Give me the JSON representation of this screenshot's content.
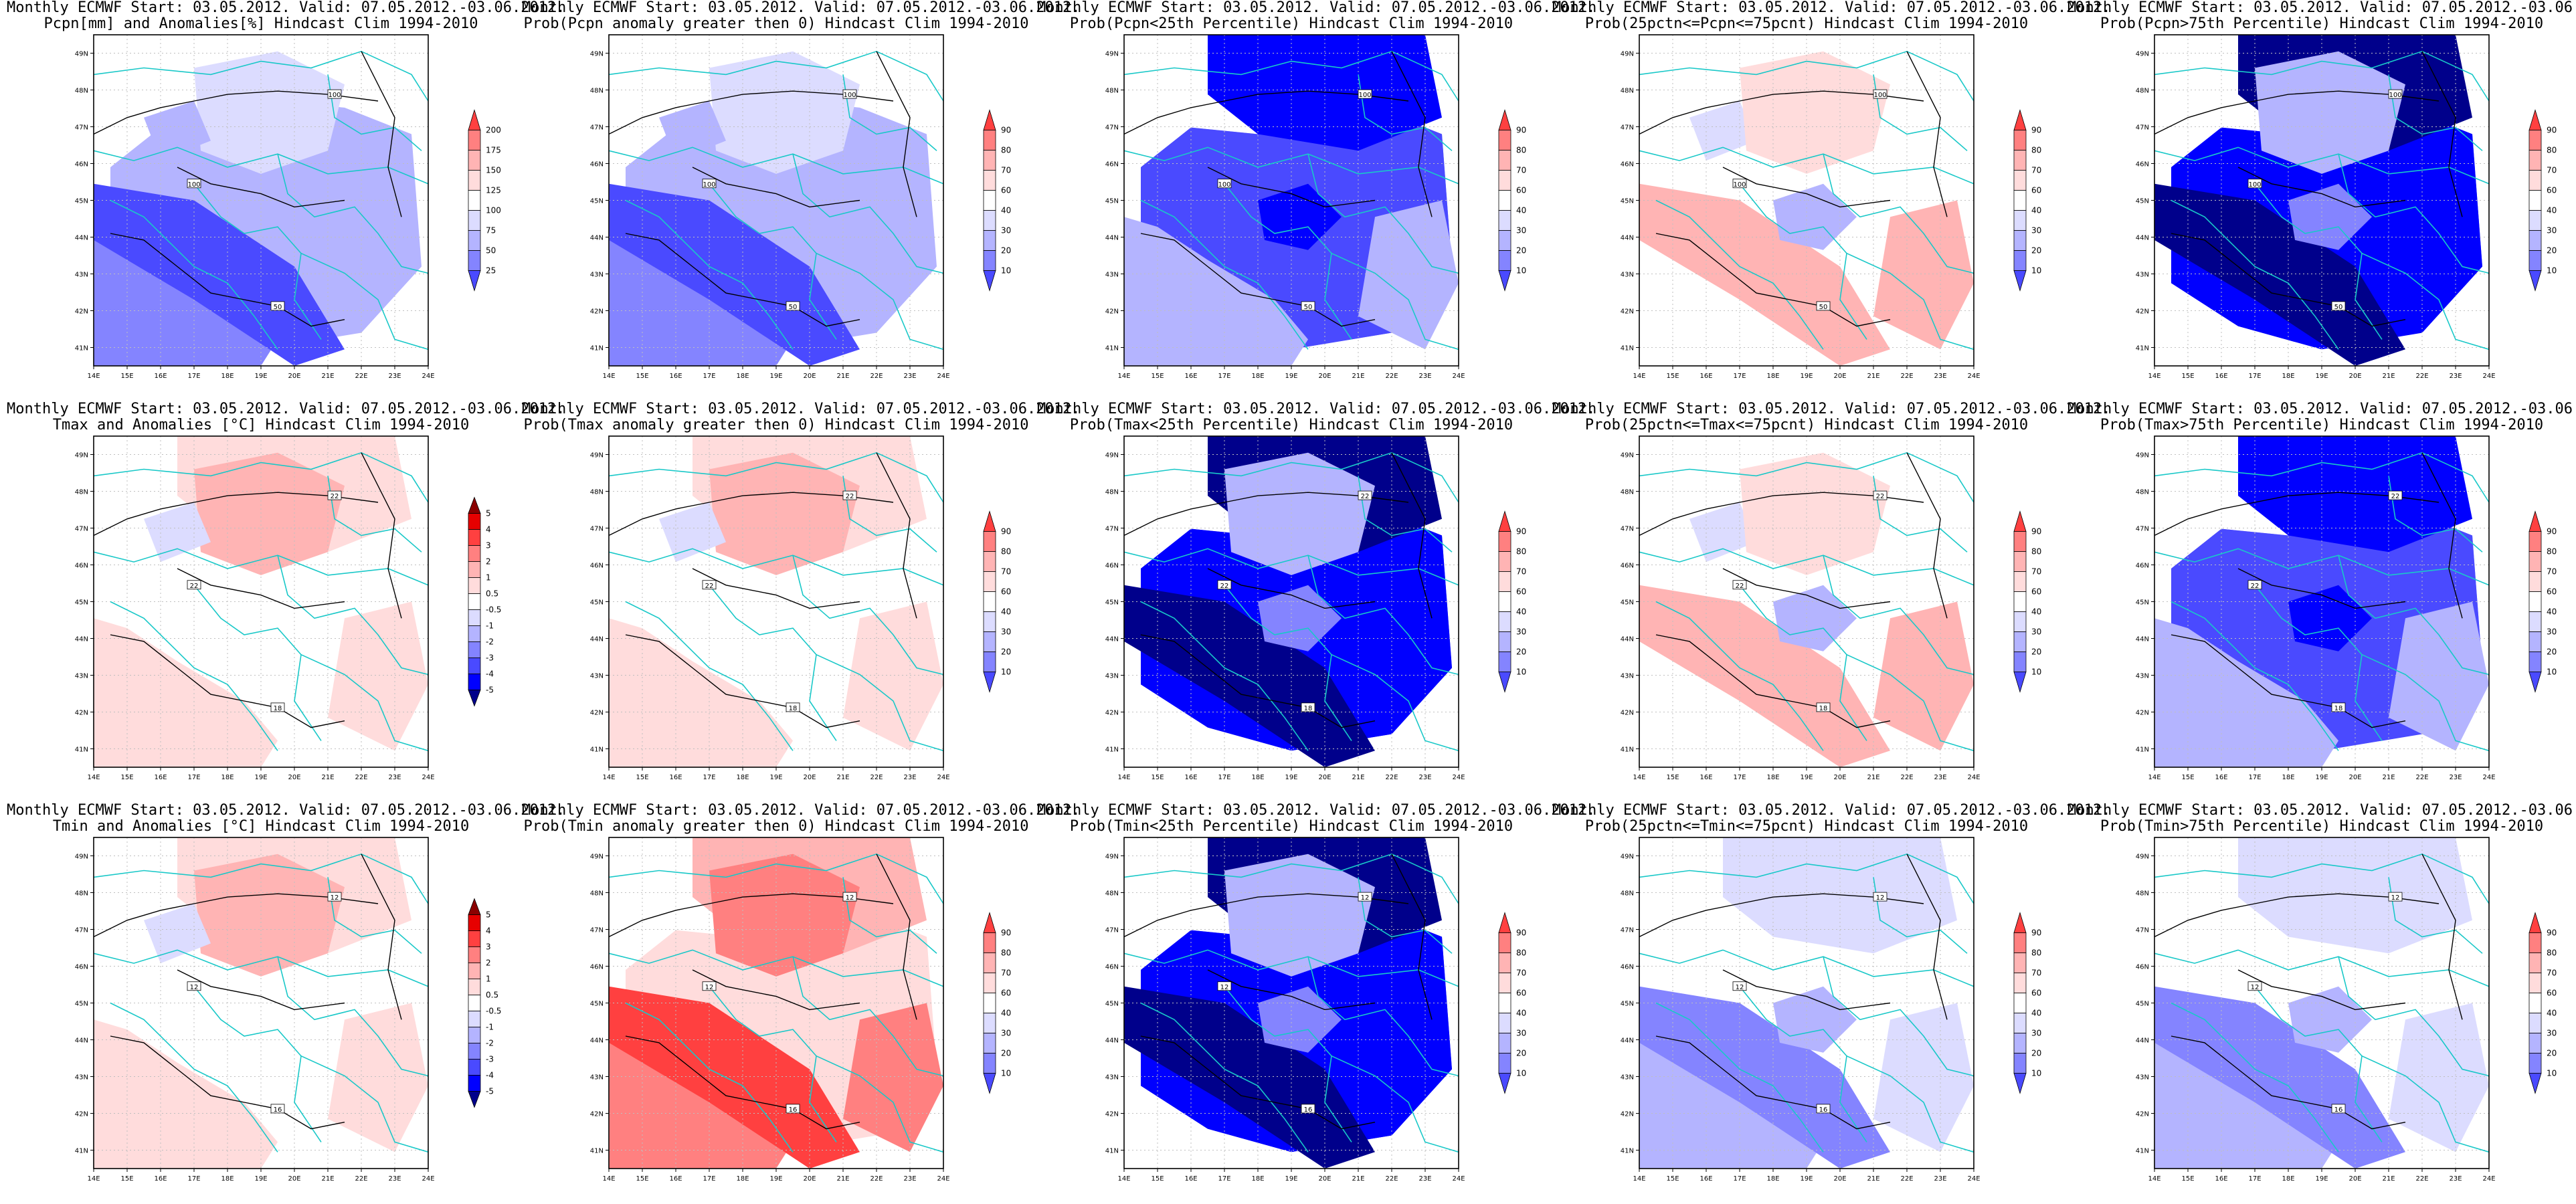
{
  "common": {
    "title_line1": "Monthly ECMWF Start: 03.05.2012. Valid: 07.05.2012.-03.06.2012.",
    "lat_labels": [
      "41N",
      "42N",
      "43N",
      "44N",
      "45N",
      "46N",
      "47N",
      "48N",
      "49N"
    ],
    "lon_labels": [
      "14E",
      "15E",
      "16E",
      "17E",
      "18E",
      "19E",
      "20E",
      "21E",
      "22E",
      "23E",
      "24E"
    ]
  },
  "colors": {
    "boundary": "#19c8c8",
    "contour": "#000000",
    "grid": "#bfbfbf",
    "scale": [
      "#00008b",
      "#0000ff",
      "#4a4aff",
      "#8484ff",
      "#b4b4ff",
      "#dcdcff",
      "#ffffff",
      "#ffdcdc",
      "#ffb4b4",
      "#ff8080",
      "#ff4040",
      "#e60000",
      "#8b0000"
    ]
  },
  "panels": [
    {
      "id": "p1",
      "subtitle": "Pcpn[mm] and Anomalies[%] Hindcast Clim 1994-2010",
      "colorbar": [
        "25",
        "50",
        "75",
        "100",
        "125",
        "150",
        "175",
        "200"
      ],
      "contours": [
        "100",
        "50"
      ],
      "theme": "pcpn-anom"
    },
    {
      "id": "p2",
      "subtitle": "Prob(Pcpn anomaly greater then 0) Hindcast Clim 1994-2010",
      "colorbar": [
        "10",
        "20",
        "30",
        "40",
        "60",
        "70",
        "80",
        "90"
      ],
      "contours": [
        "100",
        "50"
      ],
      "theme": "pcpn-anom"
    },
    {
      "id": "p3",
      "subtitle": "Prob(Pcpn<25th Percentile) Hindcast Clim 1994-2010",
      "colorbar": [
        "10",
        "20",
        "30",
        "40",
        "60",
        "70",
        "80",
        "90"
      ],
      "contours": [
        "100",
        "50"
      ],
      "theme": "blue-mid"
    },
    {
      "id": "p4",
      "subtitle": "Prob(25pctn<=Pcpn<=75pcnt) Hindcast Clim 1994-2010",
      "colorbar": [
        "10",
        "20",
        "30",
        "40",
        "60",
        "70",
        "80",
        "90"
      ],
      "contours": [
        "100",
        "50"
      ],
      "theme": "mixed"
    },
    {
      "id": "p5",
      "subtitle": "Prob(Pcpn>75th Percentile) Hindcast Clim 1994-2010",
      "colorbar": [
        "10",
        "20",
        "30",
        "40",
        "60",
        "70",
        "80",
        "90"
      ],
      "contours": [
        "100",
        "50"
      ],
      "theme": "blue-dark"
    },
    {
      "id": "p6",
      "subtitle": "Tmax and Anomalies [°C] Hindcast Clim 1994-2010",
      "colorbar": [
        "-5",
        "-4",
        "-3",
        "-2",
        "-1",
        "-0.5",
        "0.5",
        "1",
        "2",
        "3",
        "4",
        "5"
      ],
      "contours": [
        "22",
        "18"
      ],
      "theme": "red-light"
    },
    {
      "id": "p7",
      "subtitle": "Prob(Tmax anomaly greater then 0) Hindcast Clim 1994-2010",
      "colorbar": [
        "10",
        "20",
        "30",
        "40",
        "60",
        "70",
        "80",
        "90"
      ],
      "contours": [
        "22",
        "18"
      ],
      "theme": "red-light"
    },
    {
      "id": "p8",
      "subtitle": "Prob(Tmax<25th Percentile) Hindcast Clim 1994-2010",
      "colorbar": [
        "10",
        "20",
        "30",
        "40",
        "60",
        "70",
        "80",
        "90"
      ],
      "contours": [
        "22",
        "18"
      ],
      "theme": "blue-dark"
    },
    {
      "id": "p9",
      "subtitle": "Prob(25pctn<=Tmax<=75pcnt) Hindcast Clim 1994-2010",
      "colorbar": [
        "10",
        "20",
        "30",
        "40",
        "60",
        "70",
        "80",
        "90"
      ],
      "contours": [
        "22",
        "18"
      ],
      "theme": "mixed"
    },
    {
      "id": "p10",
      "subtitle": "Prob(Tmax>75th Percentile) Hindcast Clim 1994-2010",
      "colorbar": [
        "10",
        "20",
        "30",
        "40",
        "60",
        "70",
        "80",
        "90"
      ],
      "contours": [
        "22",
        "18"
      ],
      "theme": "blue-mid"
    },
    {
      "id": "p11",
      "subtitle": "Tmin and Anomalies [°C] Hindcast Clim 1994-2010",
      "colorbar": [
        "-5",
        "-4",
        "-3",
        "-2",
        "-1",
        "-0.5",
        "0.5",
        "1",
        "2",
        "3",
        "4",
        "5"
      ],
      "contours": [
        "12",
        "16"
      ],
      "theme": "red-light"
    },
    {
      "id": "p12",
      "subtitle": "Prob(Tmin anomaly greater then 0) Hindcast Clim 1994-2010",
      "colorbar": [
        "10",
        "20",
        "30",
        "40",
        "60",
        "70",
        "80",
        "90"
      ],
      "contours": [
        "12",
        "16"
      ],
      "theme": "red-strong"
    },
    {
      "id": "p13",
      "subtitle": "Prob(Tmin<25th Percentile) Hindcast Clim 1994-2010",
      "colorbar": [
        "10",
        "20",
        "30",
        "40",
        "60",
        "70",
        "80",
        "90"
      ],
      "contours": [
        "12",
        "16"
      ],
      "theme": "blue-dark"
    },
    {
      "id": "p14",
      "subtitle": "Prob(25pctn<=Tmin<=75pcnt) Hindcast Clim 1994-2010",
      "colorbar": [
        "10",
        "20",
        "30",
        "40",
        "60",
        "70",
        "80",
        "90"
      ],
      "contours": [
        "12",
        "16"
      ],
      "theme": "blue-light"
    },
    {
      "id": "p15",
      "subtitle": "Prob(Tmin>75th Percentile) Hindcast Clim 1994-2010",
      "colorbar": [
        "10",
        "20",
        "30",
        "40",
        "60",
        "70",
        "80",
        "90"
      ],
      "contours": [
        "12",
        "16"
      ],
      "theme": "blue-light"
    }
  ]
}
